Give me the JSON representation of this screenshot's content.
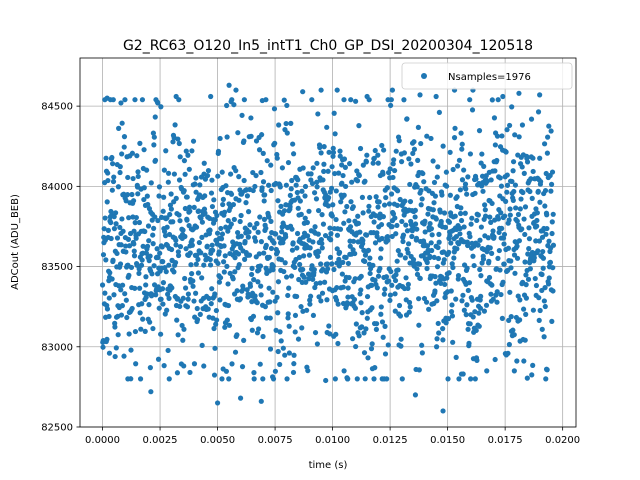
{
  "chart_data": {
    "type": "scatter",
    "title": "G2_RC63_O120_In5_intT1_Ch0_GP_DSI_20200304_120518",
    "xlabel": "time (s)",
    "ylabel": "ADCout (ADU_BEB)",
    "xlim": [
      -0.00098,
      0.02058
    ],
    "ylim": [
      82500,
      84800
    ],
    "x_ticks": [
      0.0,
      0.0025,
      0.005,
      0.0075,
      0.01,
      0.0125,
      0.015,
      0.0175,
      0.02
    ],
    "x_tick_labels": [
      "0.0000",
      "0.0025",
      "0.0050",
      "0.0075",
      "0.0100",
      "0.0125",
      "0.0150",
      "0.0175",
      "0.0200"
    ],
    "y_ticks": [
      82500,
      83000,
      83500,
      84000,
      84500
    ],
    "y_tick_labels": [
      "82500",
      "83000",
      "83500",
      "84000",
      "84500"
    ],
    "grid": true,
    "legend_position": "top-right",
    "series": [
      {
        "name": "Nsamples=1976",
        "color": "#1f77b4",
        "marker": "circle",
        "n_samples": 1976,
        "x_range": [
          0.0,
          0.0196
        ],
        "y_center": 83650,
        "y_spread_sd": 380,
        "y_range": [
          82600,
          84640
        ],
        "points": [
          [
            0.0001,
            84540
          ],
          [
            0.0002,
            84550
          ],
          [
            0.0008,
            84520
          ],
          [
            0.0024,
            84520
          ],
          [
            0.0032,
            84560
          ],
          [
            0.0047,
            84560
          ],
          [
            0.0055,
            84630
          ],
          [
            0.0058,
            84600
          ],
          [
            0.0071,
            84540
          ],
          [
            0.0087,
            84590
          ],
          [
            0.0095,
            84600
          ],
          [
            0.0102,
            84600
          ],
          [
            0.011,
            84530
          ],
          [
            0.0115,
            84560
          ],
          [
            0.0126,
            84600
          ],
          [
            0.0138,
            84570
          ],
          [
            0.0145,
            84560
          ],
          [
            0.0153,
            84600
          ],
          [
            0.0161,
            84600
          ],
          [
            0.0174,
            84560
          ],
          [
            0.0181,
            84580
          ],
          [
            0.019,
            84570
          ],
          [
            0.0003,
            82960
          ],
          [
            0.0011,
            82800
          ],
          [
            0.0021,
            82720
          ],
          [
            0.0029,
            82800
          ],
          [
            0.0038,
            82840
          ],
          [
            0.005,
            82650
          ],
          [
            0.006,
            82680
          ],
          [
            0.0069,
            82660
          ],
          [
            0.0083,
            82840
          ],
          [
            0.0097,
            82790
          ],
          [
            0.0118,
            82800
          ],
          [
            0.0136,
            82700
          ],
          [
            0.0148,
            82600
          ],
          [
            0.0156,
            82830
          ],
          [
            0.0167,
            82850
          ],
          [
            0.0179,
            82850
          ],
          [
            0.0193,
            82860
          ],
          [
            0.0105,
            82850
          ],
          [
            0.0077,
            82890
          ],
          [
            0.0044,
            82880
          ]
        ]
      }
    ]
  }
}
